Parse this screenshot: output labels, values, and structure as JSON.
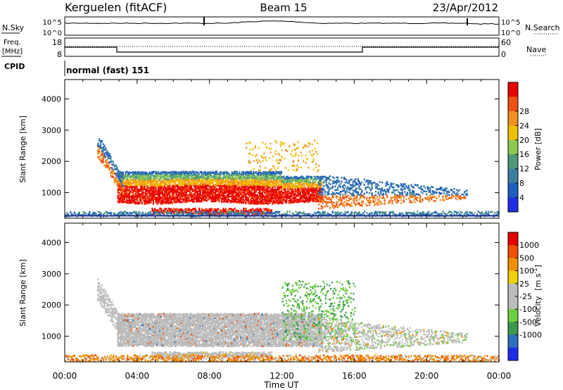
{
  "header": {
    "station": "Kerguelen (fitACF)",
    "beam": "Beam 15",
    "date": "23/Apr/2012"
  },
  "panels": {
    "nsky_label": "N.Sky",
    "nsearch_label": "N.Search",
    "nsky_ticks": [
      "10^5",
      "10^0"
    ],
    "nsearch_ticks": [
      "10^5",
      "10^0"
    ],
    "freq_label": "Freq.",
    "freq_unit": "[MHz]",
    "freq_ticks": [
      "18",
      "8"
    ],
    "nave_label": "Nave",
    "nave_ticks": [
      "60",
      "0"
    ],
    "cpid_label": "CPID",
    "cpid_value": "normal (fast) 151"
  },
  "chart_data": [
    {
      "type": "heatmap",
      "name": "power",
      "ylabel": "Slant Range [km]",
      "xlabel": "Time UT",
      "x_ticks": [
        "00:00",
        "04:00",
        "08:00",
        "12:00",
        "16:00",
        "20:00",
        "00:00"
      ],
      "y_ticks": [
        1000,
        2000,
        3000,
        4000
      ],
      "xlim_hours": [
        0,
        24
      ],
      "ylim_km": [
        180,
        4620
      ],
      "colorbar": {
        "label": "Power [dB]",
        "ticks": [
          4,
          8,
          12,
          16,
          20,
          24,
          28
        ],
        "colors": [
          "#1e2ee8",
          "#1e5fc0",
          "#3c7fa0",
          "#4e9a78",
          "#8ec850",
          "#f0c000",
          "#f09020",
          "#f05010",
          "#e80000"
        ]
      }
    },
    {
      "type": "heatmap",
      "name": "velocity",
      "ylabel": "Slant Range [km]",
      "xlabel": "Time UT",
      "x_ticks": [
        "00:00",
        "04:00",
        "08:00",
        "12:00",
        "16:00",
        "20:00",
        "00:00"
      ],
      "y_ticks": [
        1000,
        2000,
        3000,
        4000
      ],
      "xlim_hours": [
        0,
        24
      ],
      "ylim_km": [
        180,
        4620
      ],
      "colorbar": {
        "label": "Velocity",
        "unit": "[m s",
        "unit_sup": "-1",
        "unit_end": "]",
        "ticks": [
          "1000",
          "500",
          "100",
          "25",
          "-25",
          "-100",
          "-500",
          "-1000"
        ],
        "colors": [
          "#1e2ee8",
          "#2e6ec0",
          "#3a9a50",
          "#6ed040",
          "#bcbcbc",
          "#bcbcbc",
          "#f0d000",
          "#f09000",
          "#f05000",
          "#e80000"
        ]
      }
    }
  ]
}
